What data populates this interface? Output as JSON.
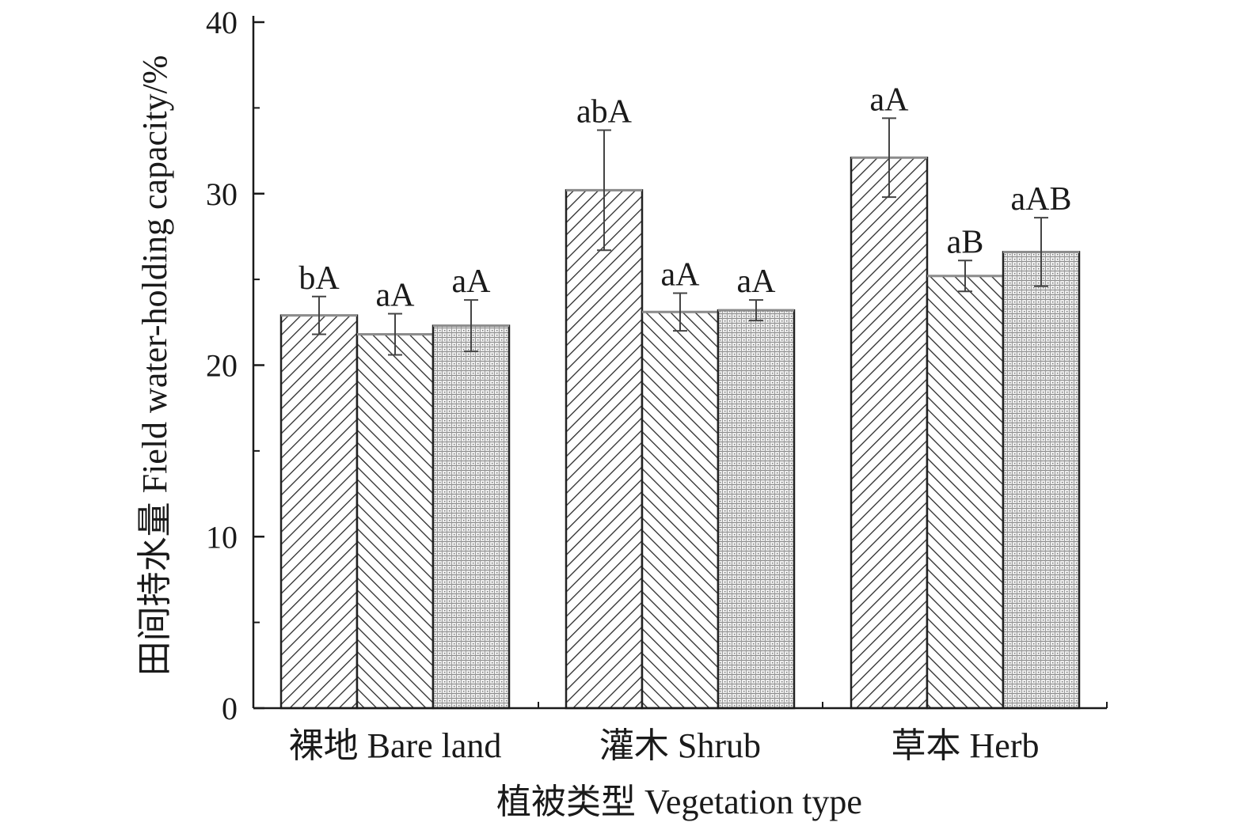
{
  "chart_data": {
    "type": "bar",
    "xlabel": "植被类型 Vegetation type",
    "ylabel": "田间持水量 Field water-holding capacity/%",
    "ylim": [
      0,
      40
    ],
    "yticks": [
      "0",
      "10",
      "20",
      "30",
      "40"
    ],
    "grid": false,
    "legend": "none",
    "categories": [
      "裸地 Bare land",
      "灌木 Shrub",
      "草本 Herb"
    ],
    "series": [
      {
        "pattern": "hatch-right",
        "values": [
          22.9,
          30.2,
          32.1
        ],
        "errors": [
          1.1,
          3.5,
          2.3
        ],
        "labels": [
          "bA",
          "abA",
          "aA"
        ]
      },
      {
        "pattern": "hatch-left",
        "values": [
          21.8,
          23.1,
          25.2
        ],
        "errors": [
          1.2,
          1.1,
          0.9
        ],
        "labels": [
          "aA",
          "aA",
          "aB"
        ]
      },
      {
        "pattern": "crosshatch-fine",
        "values": [
          22.3,
          23.2,
          26.6
        ],
        "errors": [
          1.5,
          0.6,
          2.0
        ],
        "labels": [
          "aA",
          "aA",
          "aAB"
        ]
      }
    ],
    "colors": {
      "axis": "#1a1a1a",
      "bar_stroke": "#222222",
      "bar_top": "#8c8c8c",
      "error_bar": "#444444"
    }
  }
}
